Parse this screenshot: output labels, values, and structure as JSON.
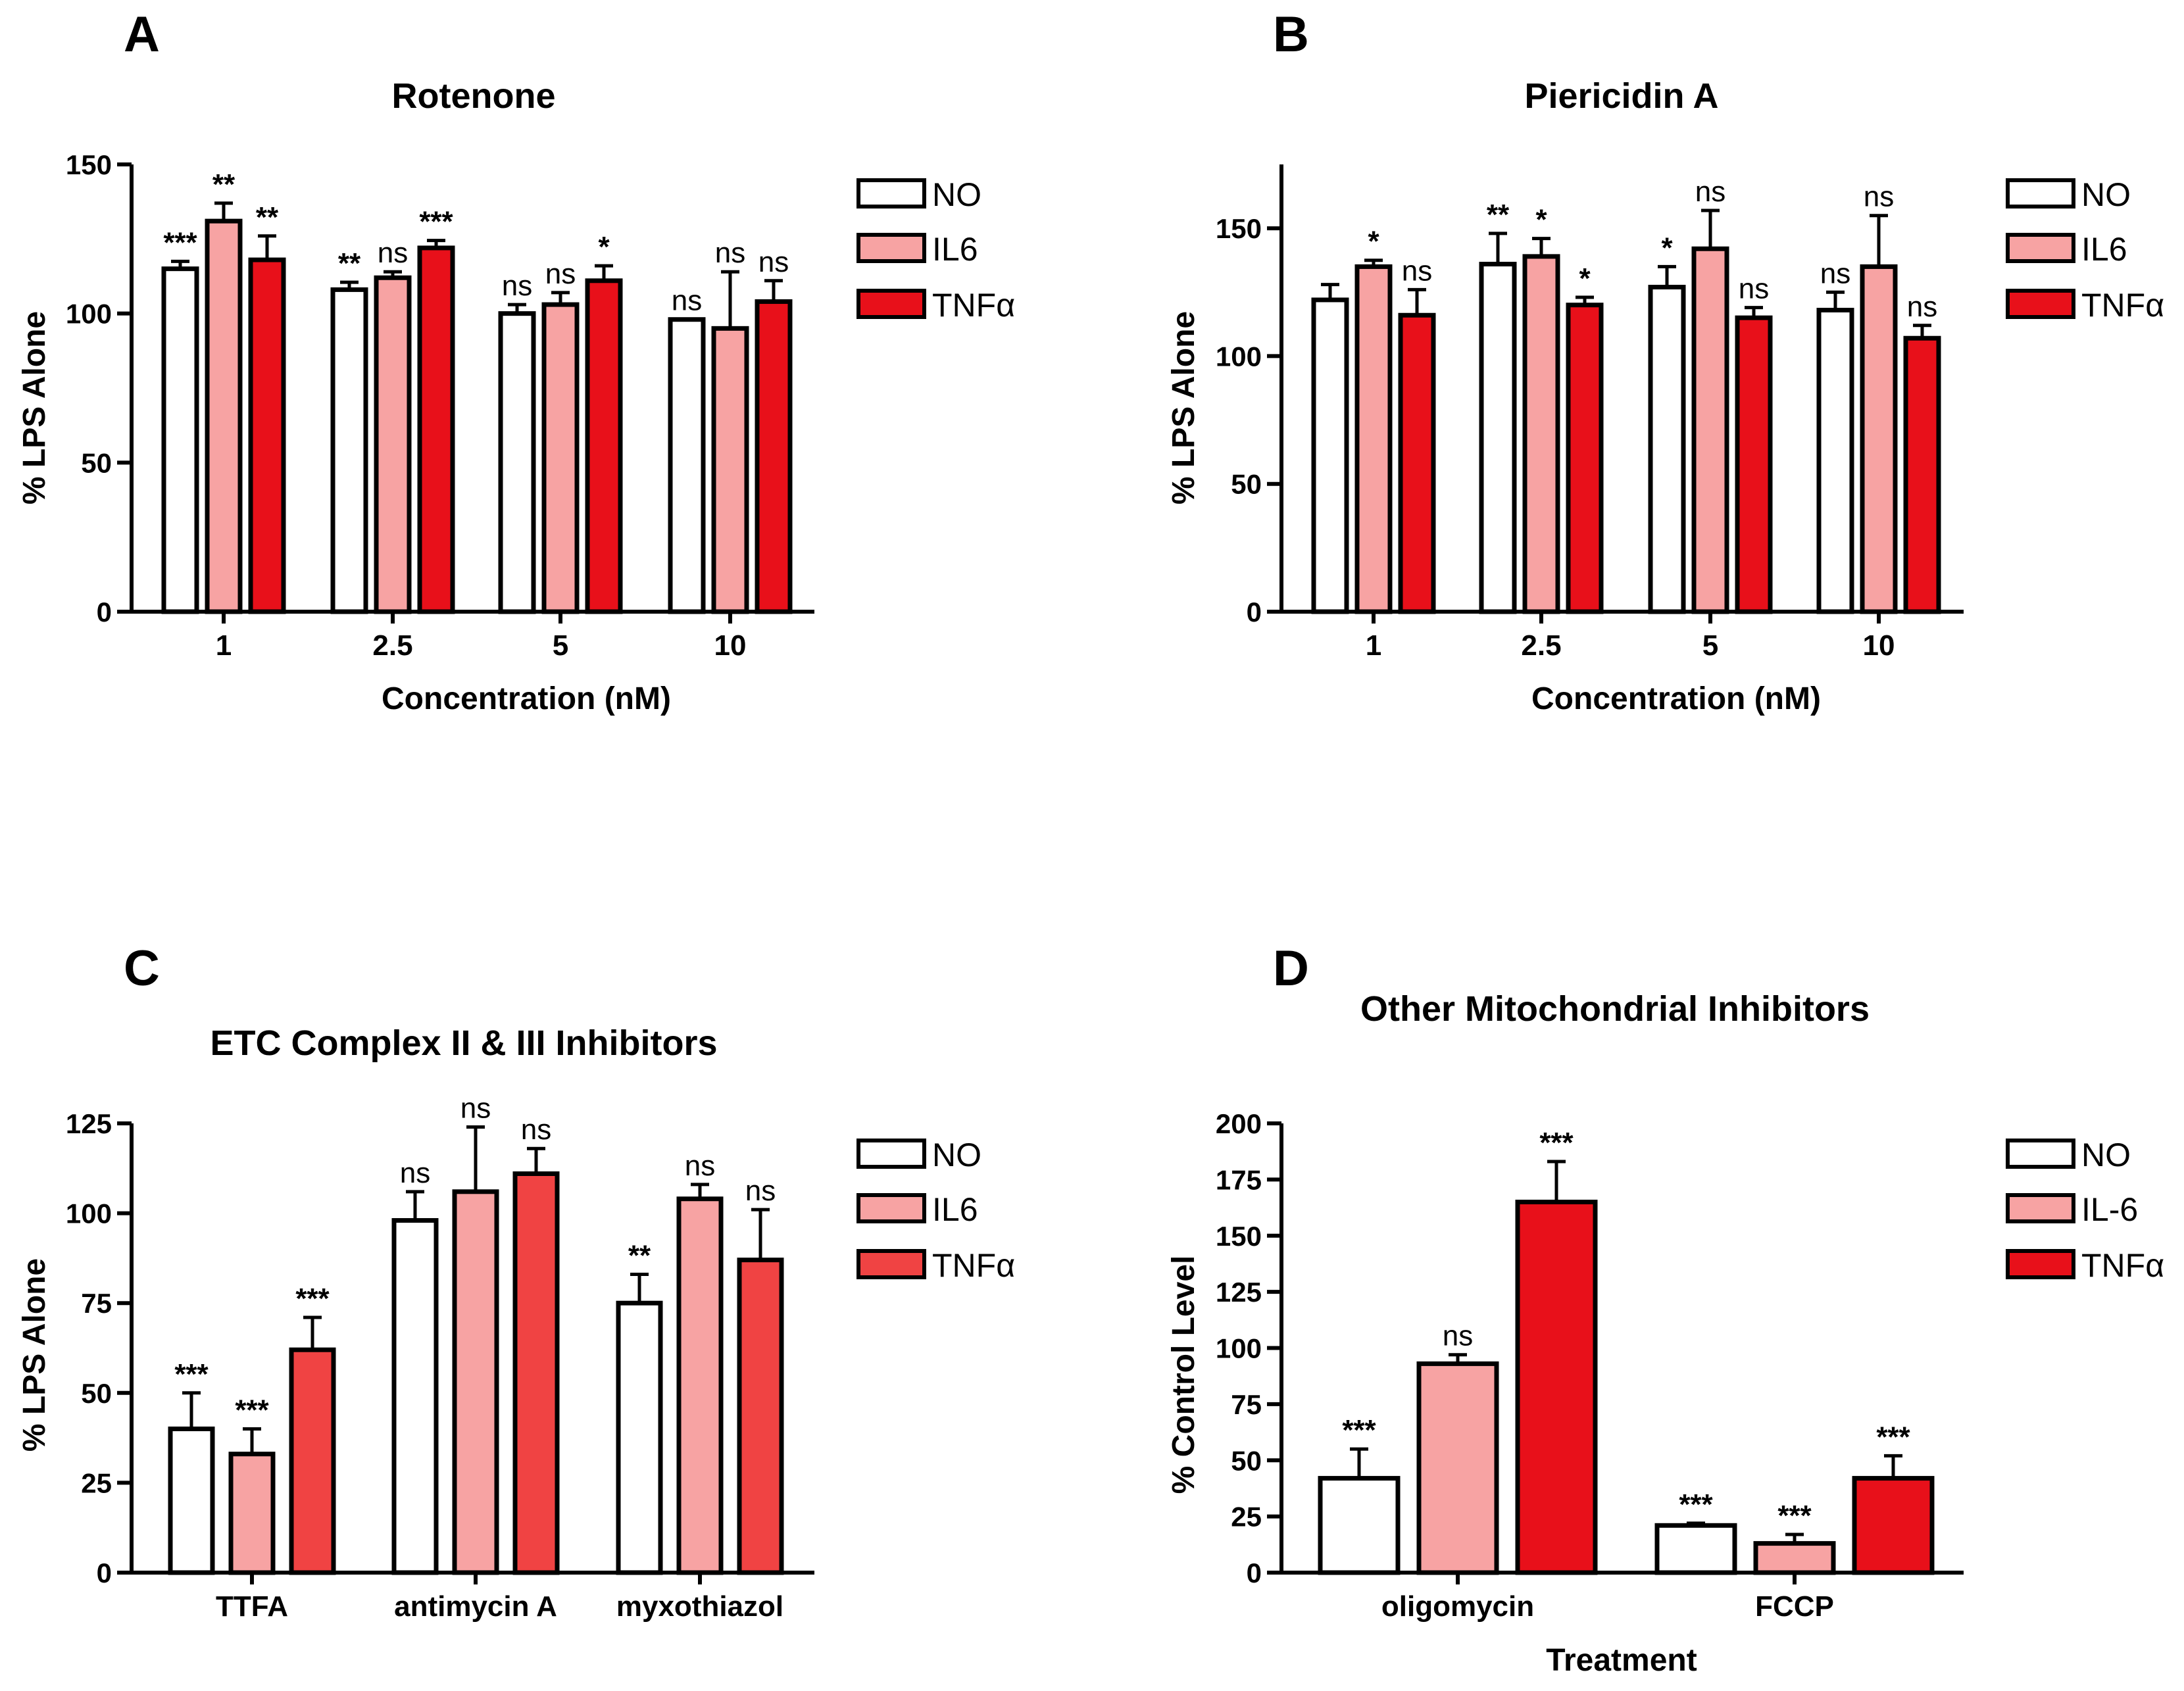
{
  "colors": {
    "NO": "#ffffff",
    "IL6": "#f7a3a3",
    "TNF": "#e8101a",
    "TNF_C": "#f04343",
    "outline": "#000000"
  },
  "chart_data": [
    {
      "panel": "A",
      "type": "bar",
      "title": "Rotenone",
      "xlabel": "Concentration (nM)",
      "ylabel": "% LPS Alone",
      "ylim": [
        0,
        150
      ],
      "yticks": [
        0,
        50,
        100,
        150
      ],
      "categories": [
        "1",
        "2.5",
        "5",
        "10"
      ],
      "legend": [
        "NO",
        "IL6",
        "TNFα"
      ],
      "legend_position": "right",
      "series": [
        {
          "name": "NO",
          "values": [
            115,
            108,
            100,
            98
          ],
          "errors": [
            2.5,
            2.5,
            3,
            0
          ],
          "sig": [
            "***",
            "**",
            "ns",
            "ns"
          ]
        },
        {
          "name": "IL6",
          "values": [
            131,
            112,
            103,
            95
          ],
          "errors": [
            6,
            2,
            4,
            19
          ],
          "sig": [
            "**",
            "ns",
            "ns",
            "ns"
          ]
        },
        {
          "name": "TNFα",
          "values": [
            118,
            122,
            111,
            104
          ],
          "errors": [
            8,
            2.5,
            5,
            7
          ],
          "sig": [
            "**",
            "***",
            "*",
            "ns"
          ]
        }
      ]
    },
    {
      "panel": "B",
      "type": "bar",
      "title": "Piericidin A",
      "xlabel": "Concentration (nM)",
      "ylabel": "% LPS Alone",
      "ylim": [
        0,
        175
      ],
      "yticks": [
        0,
        50,
        100,
        150
      ],
      "categories": [
        "1",
        "2.5",
        "5",
        "10"
      ],
      "legend": [
        "NO",
        "IL6",
        "TNFα"
      ],
      "legend_position": "right",
      "series": [
        {
          "name": "NO",
          "values": [
            122,
            136,
            127,
            118
          ],
          "errors": [
            6,
            12,
            8,
            7
          ],
          "sig": [
            "",
            "**",
            "*",
            "ns"
          ]
        },
        {
          "name": "IL6",
          "values": [
            135,
            139,
            142,
            135
          ],
          "errors": [
            2.5,
            7,
            15,
            20
          ],
          "sig": [
            "*",
            "*",
            "ns",
            "ns"
          ]
        },
        {
          "name": "TNFα",
          "values": [
            116,
            120,
            115,
            107
          ],
          "errors": [
            10,
            3,
            4,
            5
          ],
          "sig": [
            "ns",
            "*",
            "ns",
            "ns"
          ]
        }
      ]
    },
    {
      "panel": "C",
      "type": "bar",
      "title": "ETC Complex II & III Inhibitors",
      "xlabel": "",
      "ylabel": "% LPS Alone",
      "ylim": [
        0,
        125
      ],
      "yticks": [
        0,
        25,
        50,
        75,
        100,
        125
      ],
      "categories": [
        "TTFA",
        "antimycin A",
        "myxothiazol"
      ],
      "legend": [
        "NO",
        "IL6",
        "TNFα"
      ],
      "legend_position": "right",
      "series": [
        {
          "name": "NO",
          "values": [
            40,
            98,
            75
          ],
          "errors": [
            10,
            8,
            8
          ],
          "sig": [
            "***",
            "ns",
            "**"
          ]
        },
        {
          "name": "IL6",
          "values": [
            33,
            106,
            104
          ],
          "errors": [
            7,
            18,
            4
          ],
          "sig": [
            "***",
            "ns",
            "ns"
          ]
        },
        {
          "name": "TNFα",
          "values": [
            62,
            111,
            87
          ],
          "errors": [
            9,
            7,
            14
          ],
          "sig": [
            "***",
            "ns",
            "ns"
          ]
        }
      ]
    },
    {
      "panel": "D",
      "type": "bar",
      "title": "Other Mitochondrial Inhibitors",
      "xlabel": "Treatment",
      "ylabel": "% Control Level",
      "ylim": [
        0,
        200
      ],
      "yticks": [
        0,
        25,
        50,
        75,
        100,
        125,
        150,
        175,
        200
      ],
      "categories": [
        "oligomycin",
        "FCCP"
      ],
      "legend": [
        "NO",
        "IL-6",
        "TNFα"
      ],
      "legend_position": "right",
      "series": [
        {
          "name": "NO",
          "values": [
            42,
            21
          ],
          "errors": [
            13,
            1
          ],
          "sig": [
            "***",
            "***"
          ]
        },
        {
          "name": "IL-6",
          "values": [
            93,
            13
          ],
          "errors": [
            4,
            4
          ],
          "sig": [
            "ns",
            "***"
          ]
        },
        {
          "name": "TNFα",
          "values": [
            165,
            42
          ],
          "errors": [
            18,
            10
          ],
          "sig": [
            "***",
            "***"
          ]
        }
      ]
    }
  ]
}
